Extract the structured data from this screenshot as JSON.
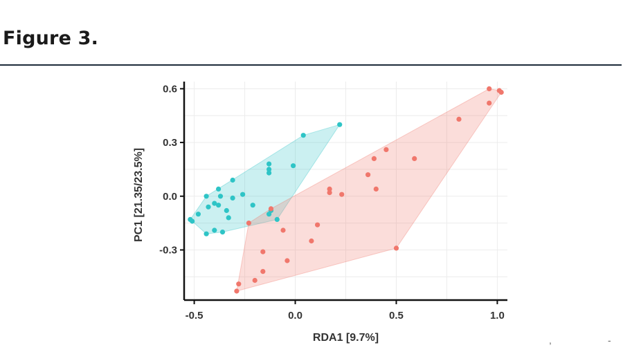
{
  "figure": {
    "title": "Figure 3."
  },
  "colors": {
    "group_a": "#2ec4c6",
    "group_a_fill": "#bfeeee",
    "group_b": "#f0776c",
    "group_b_fill": "#fcdcd8",
    "rule": "#1d2b3a"
  },
  "chart_data": {
    "type": "scatter",
    "title": "",
    "xlabel": "RDA1 [9.7%]",
    "ylabel": "PC1 [21.35/23.5%]",
    "xlim": [
      -0.55,
      1.05
    ],
    "ylim": [
      -0.58,
      0.64
    ],
    "xticks": [
      -0.5,
      0.0,
      0.5,
      1.0
    ],
    "xtick_labels": [
      "-0.5",
      "0.0",
      "0.5",
      "1.0"
    ],
    "yticks": [
      -0.3,
      0.0,
      0.3,
      0.6
    ],
    "ytick_labels": [
      "-0.3",
      "0.0",
      "0.3",
      "0.6"
    ],
    "grid": true,
    "legend": "none",
    "hulls": "convex hull shaded per group",
    "series": [
      {
        "color": "#2ec4c6",
        "points": [
          [
            0.22,
            0.4
          ],
          [
            0.04,
            0.34
          ],
          [
            -0.13,
            0.18
          ],
          [
            -0.13,
            0.15
          ],
          [
            -0.13,
            0.13
          ],
          [
            -0.01,
            0.17
          ],
          [
            -0.31,
            0.09
          ],
          [
            -0.38,
            0.04
          ],
          [
            -0.44,
            0.0
          ],
          [
            -0.37,
            0.0
          ],
          [
            -0.26,
            0.01
          ],
          [
            -0.31,
            -0.01
          ],
          [
            -0.4,
            -0.04
          ],
          [
            -0.43,
            -0.06
          ],
          [
            -0.38,
            -0.05
          ],
          [
            -0.21,
            -0.05
          ],
          [
            -0.48,
            -0.1
          ],
          [
            -0.34,
            -0.08
          ],
          [
            -0.52,
            -0.13
          ],
          [
            -0.51,
            -0.14
          ],
          [
            -0.12,
            -0.08
          ],
          [
            -0.09,
            -0.13
          ],
          [
            -0.33,
            -0.12
          ],
          [
            -0.4,
            -0.19
          ],
          [
            -0.36,
            -0.2
          ],
          [
            -0.44,
            -0.21
          ],
          [
            -0.13,
            -0.1
          ]
        ]
      },
      {
        "color": "#f0776c",
        "points": [
          [
            0.96,
            0.6
          ],
          [
            1.01,
            0.59
          ],
          [
            1.02,
            0.58
          ],
          [
            0.96,
            0.52
          ],
          [
            0.81,
            0.43
          ],
          [
            0.59,
            0.21
          ],
          [
            0.45,
            0.26
          ],
          [
            0.39,
            0.21
          ],
          [
            0.36,
            0.12
          ],
          [
            0.4,
            0.04
          ],
          [
            0.17,
            0.04
          ],
          [
            0.17,
            0.02
          ],
          [
            0.23,
            0.01
          ],
          [
            -0.12,
            -0.07
          ],
          [
            -0.23,
            -0.15
          ],
          [
            0.11,
            -0.16
          ],
          [
            -0.06,
            -0.19
          ],
          [
            0.08,
            -0.25
          ],
          [
            0.5,
            -0.29
          ],
          [
            -0.16,
            -0.31
          ],
          [
            -0.04,
            -0.36
          ],
          [
            -0.16,
            -0.42
          ],
          [
            -0.2,
            -0.47
          ],
          [
            -0.28,
            -0.49
          ],
          [
            -0.29,
            -0.53
          ]
        ]
      }
    ]
  }
}
